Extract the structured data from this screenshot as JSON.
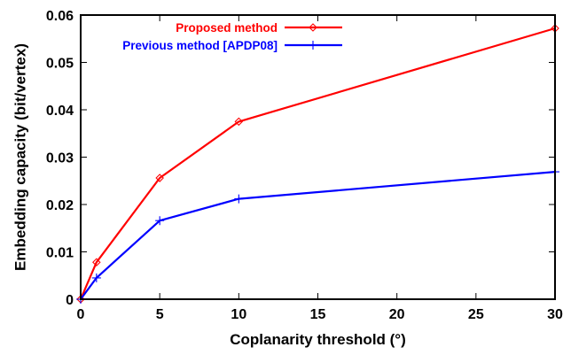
{
  "chart_data": {
    "type": "line",
    "title": "",
    "xlabel": "Coplanarity threshold (°)",
    "ylabel": "Embedding capacity (bit/vertex)",
    "xlim": [
      0,
      30
    ],
    "ylim": [
      0,
      0.06
    ],
    "x_ticks": [
      "0",
      "5",
      "10",
      "15",
      "20",
      "25",
      "30"
    ],
    "y_ticks": [
      "0",
      "0.01",
      "0.02",
      "0.03",
      "0.04",
      "0.05",
      "0.06"
    ],
    "grid": false,
    "legend_position": "top-left",
    "series": [
      {
        "name": "Proposed method",
        "color": "#ff0000",
        "marker": "diamond",
        "points": [
          [
            0,
            0
          ],
          [
            1,
            0.0078
          ],
          [
            5,
            0.0256
          ],
          [
            10,
            0.0375
          ],
          [
            30,
            0.0572
          ]
        ]
      },
      {
        "name": "Previous method [APDP08]",
        "color": "#0000ff",
        "marker": "plus",
        "points": [
          [
            0,
            0
          ],
          [
            1,
            0.0045
          ],
          [
            5,
            0.0166
          ],
          [
            10,
            0.0212
          ],
          [
            30,
            0.0269
          ]
        ]
      }
    ]
  }
}
